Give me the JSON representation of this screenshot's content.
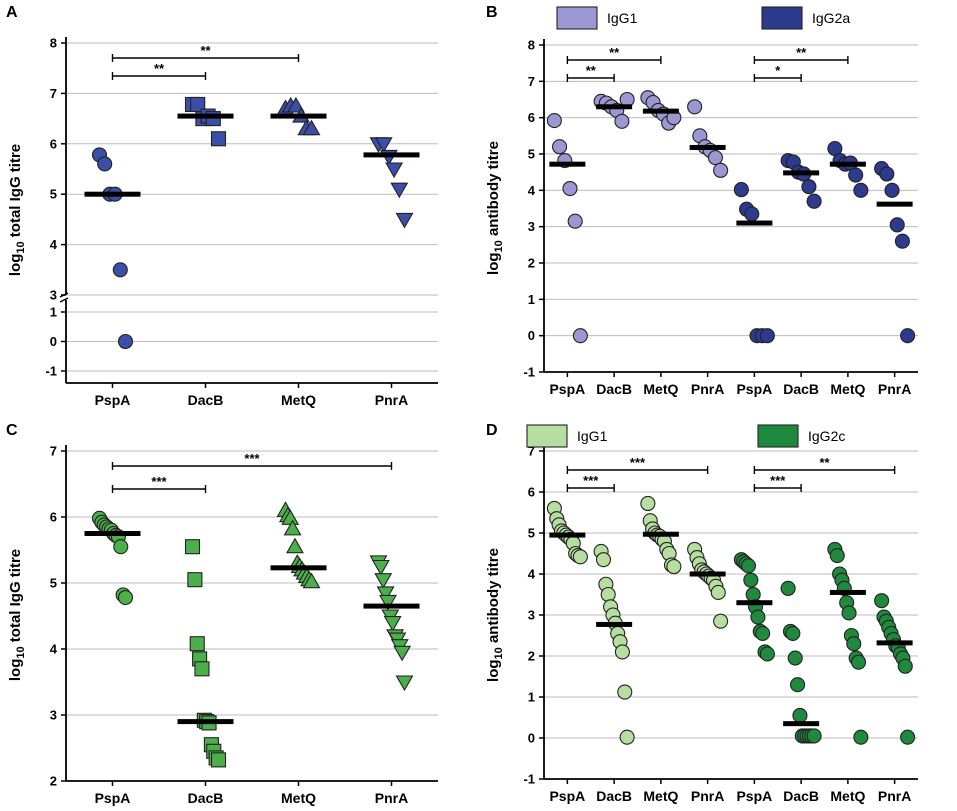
{
  "chart_data": [
    {
      "type": "scatter",
      "panel": "A",
      "ylabel_main": "log",
      "ylabel_sub": "10",
      "ylabel_rest": " total IgG titre",
      "y_ticks": [
        "-1",
        "0",
        "1",
        "3",
        "4",
        "5",
        "6",
        "7",
        "8"
      ],
      "axis_break": "between 1 and 3",
      "categories": [
        "PspA",
        "DacB",
        "MetQ",
        "PnrA"
      ],
      "marker_color": "#3b4fa8",
      "groups": [
        {
          "name": "PspA",
          "marker": "circle",
          "points": [
            5.78,
            5.6,
            5.0,
            5.0,
            3.5,
            0.0
          ],
          "median": 5.0
        },
        {
          "name": "DacB",
          "marker": "square",
          "points": [
            6.78,
            6.78,
            6.5,
            6.55,
            6.5,
            6.1
          ],
          "median": 6.55
        },
        {
          "name": "MetQ",
          "marker": "triangle-up",
          "points": [
            6.7,
            6.75,
            6.75,
            6.55,
            6.3,
            6.3
          ],
          "median": 6.55
        },
        {
          "name": "PnrA",
          "marker": "triangle-down",
          "points": [
            6.0,
            6.0,
            5.75,
            5.5,
            5.1,
            4.5
          ],
          "median": 5.78
        }
      ],
      "significance": [
        {
          "from": "PspA",
          "to": "DacB",
          "label": "**"
        },
        {
          "from": "PspA",
          "to": "MetQ",
          "label": "**"
        }
      ]
    },
    {
      "type": "scatter",
      "panel": "B",
      "ylabel_main": "log",
      "ylabel_sub": "10",
      "ylabel_rest": " antibody titre",
      "ylim": [
        -1,
        8
      ],
      "y_ticks": [
        "-1",
        "0",
        "1",
        "2",
        "3",
        "4",
        "5",
        "6",
        "7",
        "8"
      ],
      "categories": [
        "PspA",
        "DacB",
        "MetQ",
        "PnrA",
        "PspA",
        "DacB",
        "MetQ",
        "PnrA"
      ],
      "legend": [
        {
          "label": "IgG1",
          "color": "#9b97d2"
        },
        {
          "label": "IgG2a",
          "color": "#2e3a8c"
        }
      ],
      "series": [
        {
          "name": "IgG1",
          "color": "#9b97d2",
          "groups": [
            {
              "name": "PspA",
              "points": [
                5.92,
                5.2,
                4.82,
                4.05,
                3.15,
                0.0
              ],
              "median": 4.72
            },
            {
              "name": "DacB",
              "points": [
                6.45,
                6.4,
                6.3,
                6.2,
                5.9,
                6.5
              ],
              "median": 6.3
            },
            {
              "name": "MetQ",
              "points": [
                6.55,
                6.42,
                6.2,
                6.1,
                5.85,
                6.0
              ],
              "median": 6.18
            },
            {
              "name": "PnrA",
              "points": [
                6.3,
                5.5,
                5.2,
                5.1,
                4.9,
                4.55
              ],
              "median": 5.18
            }
          ]
        },
        {
          "name": "IgG2a",
          "color": "#2e3a8c",
          "groups": [
            {
              "name": "PspA",
              "points": [
                4.02,
                3.48,
                3.35,
                0.0,
                0.0,
                0.0
              ],
              "median": 3.1
            },
            {
              "name": "DacB",
              "points": [
                4.82,
                4.78,
                4.5,
                4.45,
                4.1,
                3.7
              ],
              "median": 4.48
            },
            {
              "name": "MetQ",
              "points": [
                5.15,
                4.82,
                4.72,
                4.75,
                4.42,
                4.0
              ],
              "median": 4.72
            },
            {
              "name": "PnrA",
              "points": [
                4.6,
                4.45,
                4.0,
                3.05,
                2.6,
                0.0
              ],
              "median": 3.62
            }
          ]
        }
      ],
      "significance": [
        {
          "from": 1,
          "to": 2,
          "label": "**"
        },
        {
          "from": 1,
          "to": 3,
          "label": "**"
        },
        {
          "from": 5,
          "to": 6,
          "label": "*"
        },
        {
          "from": 5,
          "to": 7,
          "label": "**"
        }
      ]
    },
    {
      "type": "scatter",
      "panel": "C",
      "ylabel_main": "log",
      "ylabel_sub": "10",
      "ylabel_rest": " total IgG titre",
      "ylim": [
        2,
        7
      ],
      "y_ticks": [
        "2",
        "3",
        "4",
        "5",
        "6",
        "7"
      ],
      "categories": [
        "PspA",
        "DacB",
        "MetQ",
        "PnrA"
      ],
      "marker_color": "#4cb04a",
      "groups": [
        {
          "name": "PspA",
          "marker": "circle",
          "points": [
            5.98,
            5.92,
            5.88,
            5.85,
            5.82,
            5.8,
            5.75,
            5.72,
            5.7,
            5.55,
            4.82,
            4.78
          ],
          "median": 5.75
        },
        {
          "name": "DacB",
          "marker": "square",
          "points": [
            5.55,
            5.05,
            4.08,
            3.85,
            3.7,
            2.92,
            2.9,
            2.88,
            2.55,
            2.45,
            2.35,
            2.32
          ],
          "median": 2.9
        },
        {
          "name": "MetQ",
          "marker": "triangle-up",
          "points": [
            6.1,
            6.02,
            5.98,
            5.82,
            5.55,
            5.3,
            5.25,
            5.2,
            5.15,
            5.1,
            5.05,
            5.02
          ],
          "median": 5.23
        },
        {
          "name": "PnrA",
          "marker": "triangle-down",
          "points": [
            5.32,
            5.25,
            5.05,
            4.85,
            4.72,
            4.5,
            4.4,
            4.2,
            4.15,
            4.05,
            3.95,
            3.5
          ],
          "median": 4.65
        }
      ],
      "significance": [
        {
          "from": "PspA",
          "to": "DacB",
          "label": "***"
        },
        {
          "from": "PspA",
          "to": "PnrA",
          "label": "***"
        }
      ]
    },
    {
      "type": "scatter",
      "panel": "D",
      "ylabel_main": "log",
      "ylabel_sub": "10",
      "ylabel_rest": " antibody titre",
      "ylim": [
        -1,
        7
      ],
      "y_ticks": [
        "-1",
        "0",
        "1",
        "2",
        "3",
        "4",
        "5",
        "6",
        "7"
      ],
      "categories": [
        "PspA",
        "DacB",
        "MetQ",
        "PnrA",
        "PspA",
        "DacB",
        "MetQ",
        "PnrA"
      ],
      "legend": [
        {
          "label": "IgG1",
          "color": "#b5dea0"
        },
        {
          "label": "IgG2c",
          "color": "#1f8a3e"
        }
      ],
      "series": [
        {
          "name": "IgG1",
          "color": "#b5dea0",
          "groups": [
            {
              "name": "PspA",
              "points": [
                5.6,
                5.35,
                5.2,
                5.05,
                5.0,
                4.95,
                4.9,
                4.85,
                4.75,
                4.5,
                4.45,
                4.42
              ],
              "median": 4.95
            },
            {
              "name": "DacB",
              "points": [
                4.55,
                4.35,
                3.75,
                3.5,
                3.2,
                3.0,
                2.8,
                2.55,
                2.35,
                2.1,
                1.12,
                0.02
              ],
              "median": 2.77
            },
            {
              "name": "MetQ",
              "points": [
                5.72,
                5.3,
                5.1,
                5.0,
                4.95,
                4.92,
                4.85,
                4.8,
                4.6,
                4.5,
                4.22,
                4.18
              ],
              "median": 4.97
            },
            {
              "name": "PnrA",
              "points": [
                4.6,
                4.4,
                4.25,
                4.1,
                4.05,
                4.0,
                3.95,
                3.9,
                3.85,
                3.7,
                3.55,
                2.85
              ],
              "median": 4.0
            }
          ]
        },
        {
          "name": "IgG2c",
          "color": "#1f8a3e",
          "groups": [
            {
              "name": "PspA",
              "points": [
                4.35,
                4.3,
                4.25,
                4.2,
                3.85,
                3.5,
                3.2,
                2.95,
                2.6,
                2.55,
                2.1,
                2.05
              ],
              "median": 3.3
            },
            {
              "name": "DacB",
              "points": [
                3.65,
                2.6,
                2.55,
                1.95,
                1.3,
                0.55,
                0.05,
                0.05,
                0.05,
                0.05,
                0.05,
                0.05
              ],
              "median": 0.35
            },
            {
              "name": "MetQ",
              "points": [
                4.6,
                4.45,
                4.0,
                3.85,
                3.65,
                3.3,
                3.05,
                2.5,
                2.3,
                1.95,
                1.85,
                0.02
              ],
              "median": 3.55
            },
            {
              "name": "PnrA",
              "points": [
                3.35,
                2.95,
                2.85,
                2.7,
                2.55,
                2.4,
                2.25,
                2.2,
                2.05,
                1.95,
                1.75,
                0.02
              ],
              "median": 2.32
            }
          ]
        }
      ],
      "significance": [
        {
          "from": 1,
          "to": 2,
          "label": "***"
        },
        {
          "from": 1,
          "to": 4,
          "label": "***"
        },
        {
          "from": 5,
          "to": 6,
          "label": "***"
        },
        {
          "from": 5,
          "to": 8,
          "label": "**"
        }
      ]
    }
  ]
}
